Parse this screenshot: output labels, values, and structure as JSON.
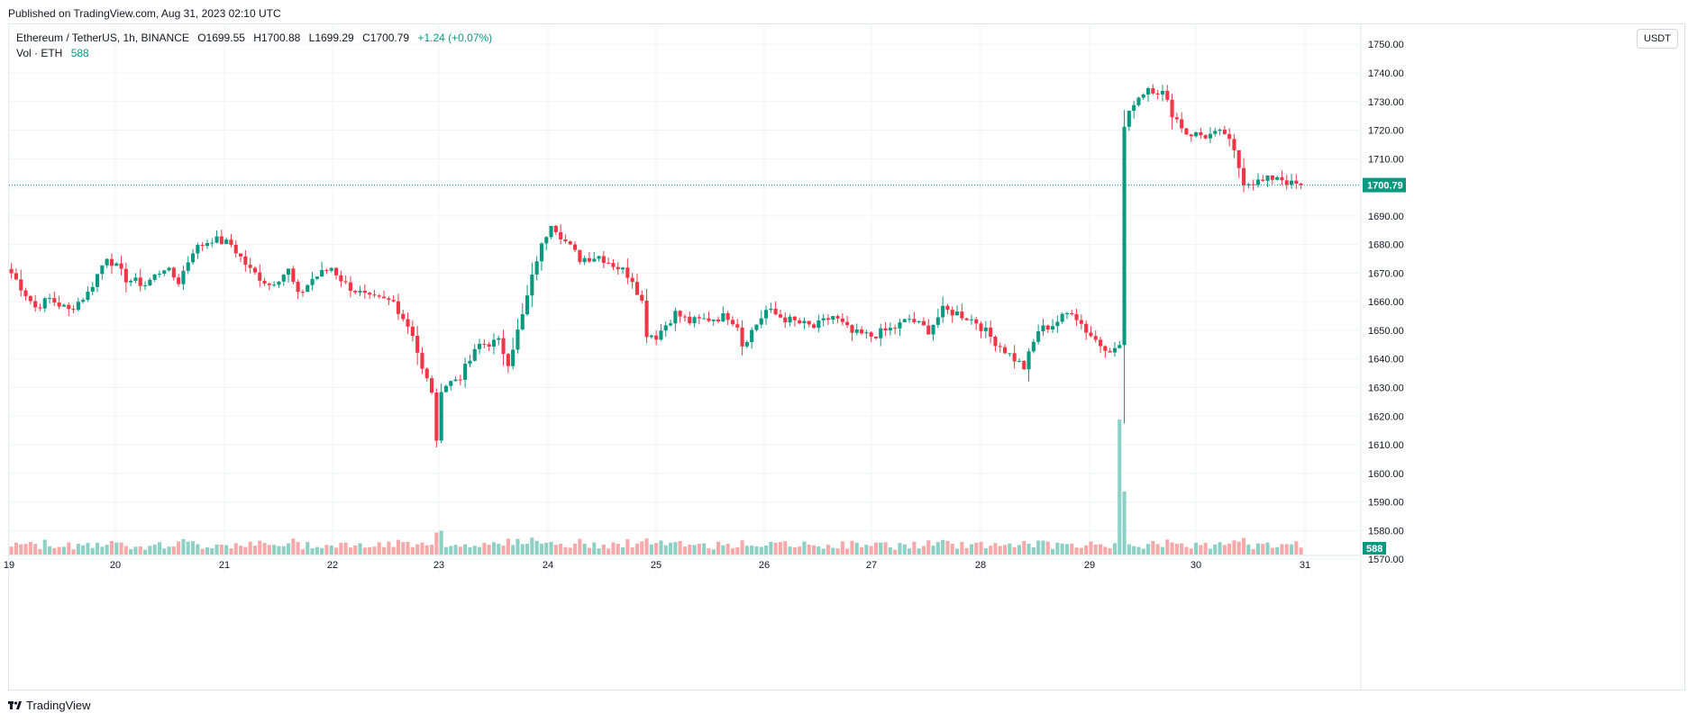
{
  "header": {
    "published": "Published on TradingView.com, Aug 31, 2023 02:10 UTC"
  },
  "legend": {
    "symbol": "Ethereum / TetherUS, 1h, BINANCE",
    "open": "O1699.55",
    "high": "H1700.88",
    "low": "L1699.29",
    "close": "C1700.79",
    "change": "+1.24 (+0.07%)",
    "volume_label": "Vol · ETH",
    "volume_value": "588"
  },
  "toolbar": {
    "currency": "USDT"
  },
  "footer": {
    "brand": "TradingView",
    "logo_icon": "tradingview-logo-icon"
  },
  "colors": {
    "up": "#089981",
    "down": "#f23645",
    "vol_up": "#8dd0c4",
    "vol_down": "#f7a9a9",
    "grid": "#f0f3fa",
    "axis_text": "#131722"
  },
  "chart_data": {
    "type": "candlestick",
    "interval": "1h",
    "title": "Ethereum / TetherUS, 1h, BINANCE",
    "y_ticks": [
      1570,
      1580,
      1590,
      1600,
      1610,
      1620,
      1630,
      1640,
      1650,
      1660,
      1670,
      1680,
      1690,
      1700,
      1710,
      1720,
      1730,
      1740,
      1750
    ],
    "x_ticks": [
      "19",
      "20",
      "21",
      "22",
      "23",
      "24",
      "25",
      "26",
      "27",
      "28",
      "29",
      "30",
      "31"
    ],
    "ylim": [
      1565,
      1757
    ],
    "last_price": "1700.79",
    "last_volume": "588",
    "grid": true,
    "anchors": [
      [
        0,
        1670
      ],
      [
        5,
        1658
      ],
      [
        8,
        1661
      ],
      [
        12,
        1657
      ],
      [
        16,
        1663
      ],
      [
        20,
        1676
      ],
      [
        24,
        1668
      ],
      [
        28,
        1666
      ],
      [
        32,
        1672
      ],
      [
        35,
        1667
      ],
      [
        38,
        1678
      ],
      [
        42,
        1682
      ],
      [
        46,
        1680
      ],
      [
        50,
        1671
      ],
      [
        54,
        1666
      ],
      [
        58,
        1671
      ],
      [
        60,
        1662
      ],
      [
        63,
        1668
      ],
      [
        67,
        1672
      ],
      [
        70,
        1666
      ],
      [
        75,
        1661
      ],
      [
        80,
        1660
      ],
      [
        84,
        1649
      ],
      [
        86,
        1636
      ],
      [
        88,
        1629
      ],
      [
        89,
        1610
      ],
      [
        90,
        1630
      ],
      [
        94,
        1634
      ],
      [
        98,
        1645
      ],
      [
        102,
        1646
      ],
      [
        104,
        1639
      ],
      [
        107,
        1655
      ],
      [
        110,
        1675
      ],
      [
        113,
        1688
      ],
      [
        116,
        1681
      ],
      [
        119,
        1675
      ],
      [
        123,
        1676
      ],
      [
        128,
        1671
      ],
      [
        130,
        1668
      ],
      [
        132,
        1660
      ],
      [
        133,
        1649
      ],
      [
        135,
        1648
      ],
      [
        139,
        1656
      ],
      [
        142,
        1653
      ],
      [
        146,
        1654
      ],
      [
        150,
        1655
      ],
      [
        152,
        1652
      ],
      [
        153,
        1645
      ],
      [
        158,
        1657
      ],
      [
        162,
        1654
      ],
      [
        168,
        1651
      ],
      [
        172,
        1655
      ],
      [
        176,
        1649
      ],
      [
        180,
        1648
      ],
      [
        185,
        1651
      ],
      [
        188,
        1654
      ],
      [
        192,
        1650
      ],
      [
        195,
        1657
      ],
      [
        198,
        1656
      ],
      [
        202,
        1653
      ],
      [
        206,
        1646
      ],
      [
        210,
        1640
      ],
      [
        212,
        1637
      ],
      [
        215,
        1650
      ],
      [
        218,
        1652
      ],
      [
        222,
        1657
      ],
      [
        225,
        1650
      ],
      [
        228,
        1645
      ],
      [
        231,
        1643
      ],
      [
        232,
        1645
      ],
      [
        233,
        1721
      ],
      [
        235,
        1730
      ],
      [
        238,
        1735
      ],
      [
        241,
        1733
      ],
      [
        243,
        1726
      ],
      [
        246,
        1719
      ],
      [
        250,
        1718
      ],
      [
        254,
        1719
      ],
      [
        256,
        1712
      ],
      [
        258,
        1702
      ],
      [
        262,
        1702
      ],
      [
        265,
        1704
      ],
      [
        268,
        1701
      ],
      [
        270,
        1700.79
      ]
    ]
  }
}
